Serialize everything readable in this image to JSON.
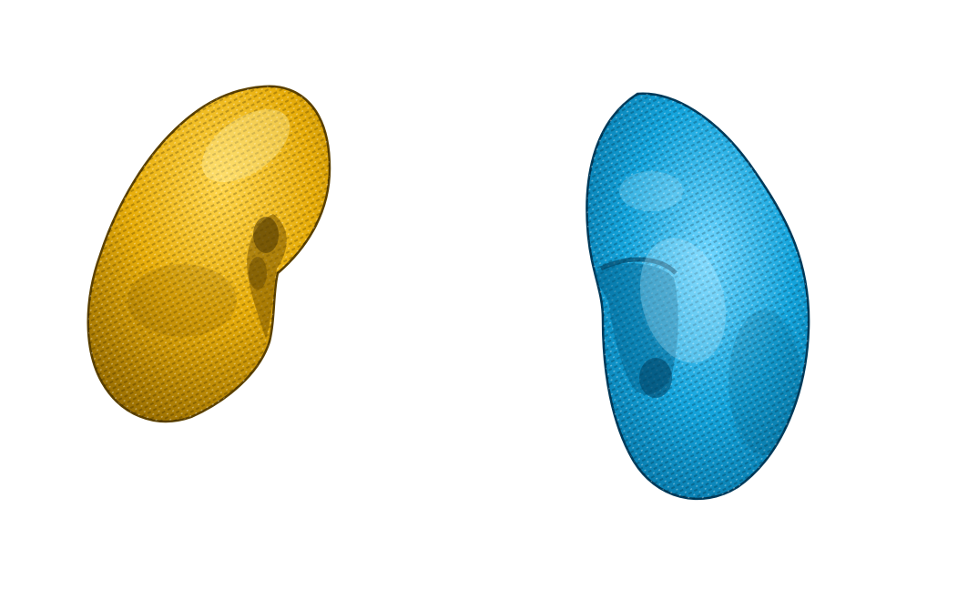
{
  "scene": {
    "background_color": "#ffffff",
    "objects": [
      {
        "name": "left-kidney-model",
        "base_color": "#e7ad0a",
        "highlight_color": "#ffd54a",
        "shadow_color": "#8a6200",
        "edge_color": "#5a4000"
      },
      {
        "name": "right-kidney-model",
        "base_color": "#14a4dc",
        "highlight_color": "#6fd6ff",
        "shadow_color": "#005a86",
        "edge_color": "#003a5a"
      }
    ]
  }
}
